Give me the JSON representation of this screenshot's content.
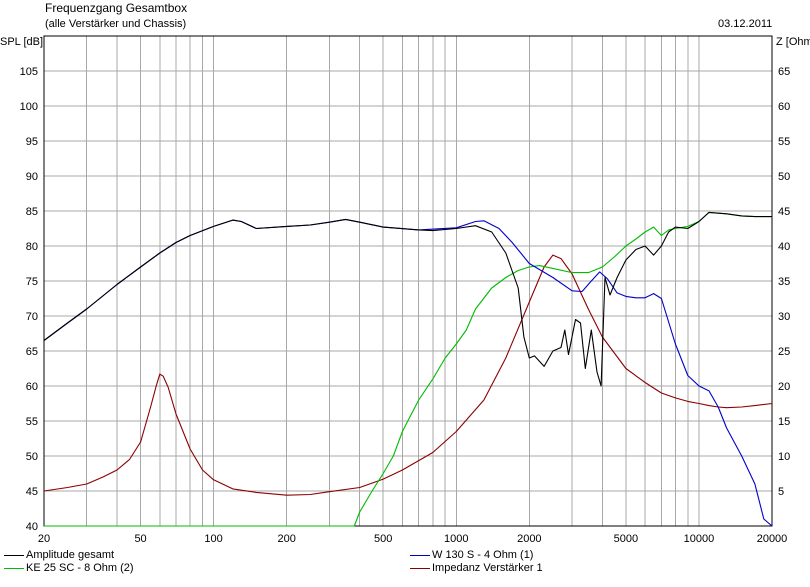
{
  "header": {
    "title": "Frequenzgang Gesamtbox",
    "subtitle": "(alle Verstärker und Chassis)",
    "date": "03.12.2011"
  },
  "chart_data": {
    "type": "line",
    "x_scale": "log",
    "xlim": [
      20,
      20000
    ],
    "ylim_left": [
      40,
      110
    ],
    "ylim_right": [
      0,
      70
    ],
    "ylabel_left": "SPL [dB]",
    "ylabel_right": "Z [Ohm]",
    "x_tick_labels": [
      "20",
      "50",
      "100",
      "200",
      "500",
      "1000",
      "2000",
      "5000",
      "10000",
      "20000"
    ],
    "y_tick_labels_left": [
      "40",
      "45",
      "50",
      "55",
      "60",
      "65",
      "70",
      "75",
      "80",
      "85",
      "90",
      "95",
      "100",
      "105"
    ],
    "y_tick_labels_right": [
      "5",
      "10",
      "15",
      "20",
      "25",
      "30",
      "35",
      "40",
      "45",
      "50",
      "55",
      "60",
      "65"
    ],
    "grid": true,
    "legend_position": "bottom",
    "series": [
      {
        "name": "Amplitude gesamt",
        "color": "#000000",
        "axis": "left",
        "points": [
          [
            20,
            66.5
          ],
          [
            25,
            69
          ],
          [
            30,
            71
          ],
          [
            40,
            74.5
          ],
          [
            50,
            77
          ],
          [
            60,
            79
          ],
          [
            70,
            80.5
          ],
          [
            80,
            81.5
          ],
          [
            100,
            82.8
          ],
          [
            120,
            83.7
          ],
          [
            130,
            83.5
          ],
          [
            150,
            82.5
          ],
          [
            200,
            82.8
          ],
          [
            250,
            83
          ],
          [
            300,
            83.4
          ],
          [
            350,
            83.8
          ],
          [
            400,
            83.4
          ],
          [
            500,
            82.7
          ],
          [
            700,
            82.3
          ],
          [
            800,
            82.2
          ],
          [
            1000,
            82.5
          ],
          [
            1200,
            82.9
          ],
          [
            1400,
            82
          ],
          [
            1600,
            79
          ],
          [
            1800,
            74
          ],
          [
            1900,
            67
          ],
          [
            2000,
            64
          ],
          [
            2100,
            64.3
          ],
          [
            2300,
            62.8
          ],
          [
            2500,
            65
          ],
          [
            2700,
            65.5
          ],
          [
            2800,
            68
          ],
          [
            2900,
            64.5
          ],
          [
            3100,
            69.5
          ],
          [
            3250,
            69
          ],
          [
            3400,
            62.5
          ],
          [
            3600,
            68
          ],
          [
            3800,
            62
          ],
          [
            3950,
            60
          ],
          [
            4100,
            75.5
          ],
          [
            4300,
            73
          ],
          [
            4600,
            75.5
          ],
          [
            5000,
            78
          ],
          [
            5500,
            79.5
          ],
          [
            6000,
            80
          ],
          [
            6500,
            78.7
          ],
          [
            7000,
            80
          ],
          [
            7500,
            82
          ],
          [
            8000,
            82.7
          ],
          [
            9000,
            82.5
          ],
          [
            10000,
            83.5
          ],
          [
            11000,
            84.8
          ],
          [
            13000,
            84.6
          ],
          [
            15000,
            84.3
          ],
          [
            17000,
            84.2
          ],
          [
            20000,
            84.2
          ]
        ]
      },
      {
        "name": "W 130 S - 4 Ohm (1)",
        "color": "#0000cc",
        "axis": "left",
        "points": [
          [
            20,
            66.5
          ],
          [
            25,
            69
          ],
          [
            30,
            71
          ],
          [
            40,
            74.5
          ],
          [
            50,
            77
          ],
          [
            60,
            79
          ],
          [
            70,
            80.5
          ],
          [
            80,
            81.5
          ],
          [
            100,
            82.8
          ],
          [
            120,
            83.7
          ],
          [
            130,
            83.5
          ],
          [
            150,
            82.5
          ],
          [
            200,
            82.8
          ],
          [
            250,
            83
          ],
          [
            300,
            83.4
          ],
          [
            350,
            83.8
          ],
          [
            400,
            83.4
          ],
          [
            500,
            82.7
          ],
          [
            700,
            82.3
          ],
          [
            1000,
            82.6
          ],
          [
            1200,
            83.5
          ],
          [
            1300,
            83.6
          ],
          [
            1500,
            82.5
          ],
          [
            1700,
            80.5
          ],
          [
            2000,
            77.5
          ],
          [
            2500,
            75.5
          ],
          [
            3000,
            73.6
          ],
          [
            3300,
            73.5
          ],
          [
            3600,
            75
          ],
          [
            3900,
            76.3
          ],
          [
            4200,
            75.3
          ],
          [
            4600,
            73.3
          ],
          [
            5000,
            72.8
          ],
          [
            5500,
            72.6
          ],
          [
            6000,
            72.6
          ],
          [
            6500,
            73.2
          ],
          [
            7000,
            72.5
          ],
          [
            8000,
            66
          ],
          [
            9000,
            61.5
          ],
          [
            10000,
            60
          ],
          [
            11000,
            59.3
          ],
          [
            12000,
            57
          ],
          [
            13000,
            54
          ],
          [
            15000,
            50
          ],
          [
            17000,
            46
          ],
          [
            18500,
            41
          ],
          [
            20000,
            40
          ]
        ]
      },
      {
        "name": "KE 25 SC - 8 Ohm   (2)",
        "color": "#00bb00",
        "axis": "left",
        "points": [
          [
            20,
            40
          ],
          [
            380,
            40
          ],
          [
            400,
            42
          ],
          [
            450,
            45
          ],
          [
            500,
            47.5
          ],
          [
            550,
            50
          ],
          [
            600,
            53.5
          ],
          [
            700,
            58
          ],
          [
            800,
            61
          ],
          [
            900,
            64
          ],
          [
            1000,
            66
          ],
          [
            1100,
            68
          ],
          [
            1200,
            71
          ],
          [
            1400,
            74
          ],
          [
            1600,
            75.5
          ],
          [
            1800,
            76.5
          ],
          [
            2000,
            77
          ],
          [
            2200,
            77.2
          ],
          [
            2500,
            76.8
          ],
          [
            3000,
            76.2
          ],
          [
            3500,
            76.2
          ],
          [
            4000,
            77
          ],
          [
            4500,
            78.5
          ],
          [
            5000,
            80
          ],
          [
            5500,
            81
          ],
          [
            6000,
            82
          ],
          [
            6500,
            82.7
          ],
          [
            7000,
            81.5
          ],
          [
            7500,
            82.3
          ],
          [
            8000,
            82.5
          ],
          [
            9000,
            82.8
          ],
          [
            10000,
            83.5
          ],
          [
            11000,
            84.8
          ],
          [
            13000,
            84.6
          ],
          [
            15000,
            84.3
          ],
          [
            17000,
            84.2
          ],
          [
            20000,
            84.2
          ]
        ]
      },
      {
        "name": "Impedanz Verstärker 1",
        "color": "#8b0000",
        "axis": "right",
        "points": [
          [
            20,
            5
          ],
          [
            25,
            5.5
          ],
          [
            30,
            6
          ],
          [
            35,
            7
          ],
          [
            40,
            8
          ],
          [
            45,
            9.5
          ],
          [
            50,
            12
          ],
          [
            55,
            17
          ],
          [
            58,
            20
          ],
          [
            60,
            21.7
          ],
          [
            62,
            21.4
          ],
          [
            65,
            19.8
          ],
          [
            70,
            16
          ],
          [
            80,
            11
          ],
          [
            90,
            8
          ],
          [
            100,
            6.6
          ],
          [
            120,
            5.3
          ],
          [
            150,
            4.8
          ],
          [
            200,
            4.4
          ],
          [
            250,
            4.5
          ],
          [
            300,
            4.9
          ],
          [
            400,
            5.5
          ],
          [
            500,
            6.7
          ],
          [
            600,
            8
          ],
          [
            800,
            10.5
          ],
          [
            1000,
            13.5
          ],
          [
            1300,
            18
          ],
          [
            1600,
            24
          ],
          [
            2000,
            32
          ],
          [
            2300,
            37
          ],
          [
            2500,
            38.7
          ],
          [
            2700,
            38.2
          ],
          [
            3000,
            36
          ],
          [
            3500,
            31
          ],
          [
            4000,
            27
          ],
          [
            5000,
            22.5
          ],
          [
            6000,
            20.5
          ],
          [
            7000,
            19
          ],
          [
            8000,
            18.3
          ],
          [
            9000,
            17.8
          ],
          [
            10000,
            17.5
          ],
          [
            11000,
            17.2
          ],
          [
            12000,
            17
          ],
          [
            13000,
            16.9
          ],
          [
            15000,
            17
          ],
          [
            17000,
            17.2
          ],
          [
            20000,
            17.5
          ]
        ]
      }
    ]
  }
}
